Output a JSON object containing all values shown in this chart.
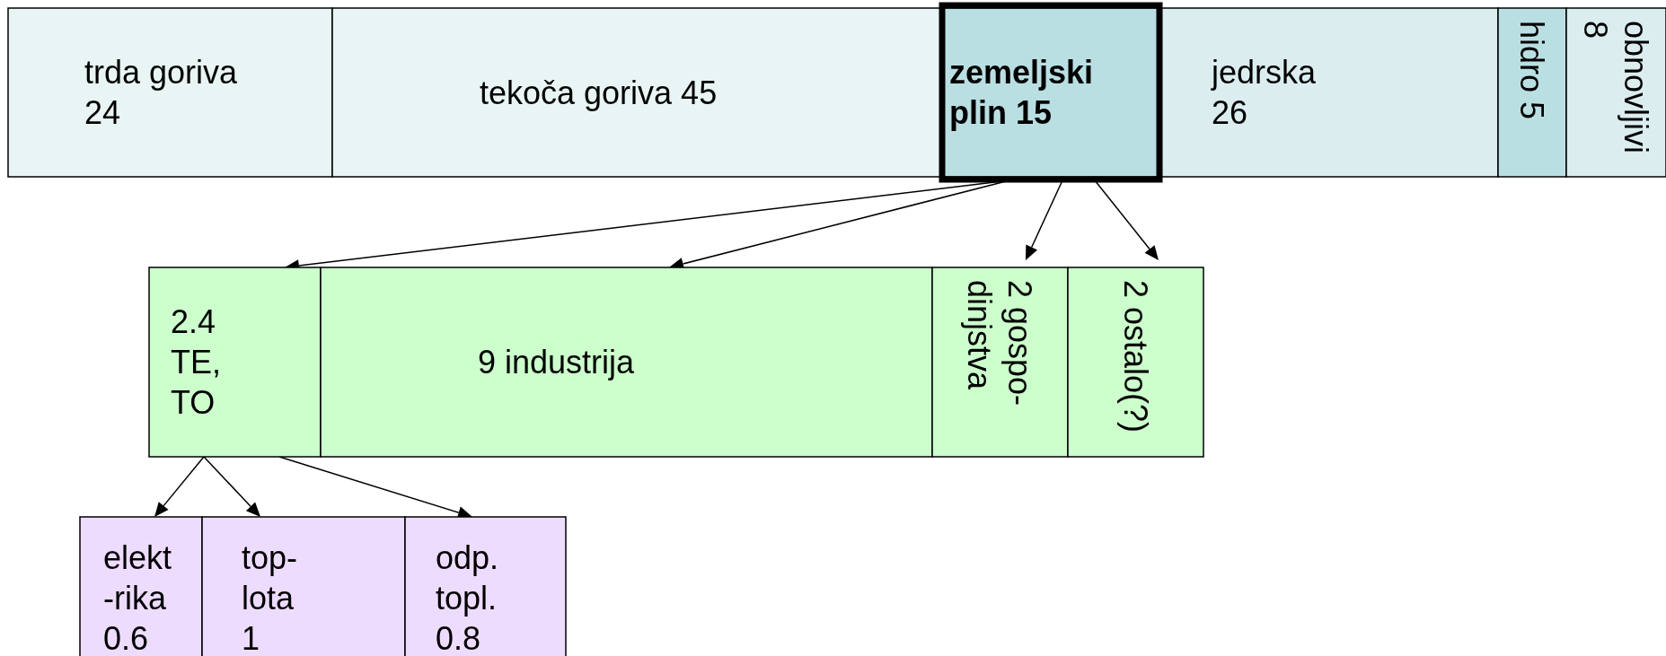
{
  "chart_data": [
    {
      "type": "other",
      "categories": [
        "trda goriva",
        "tekoča goriva",
        "zemeljski\nplin",
        "jedrska",
        "hidro",
        "obnovljivi"
      ],
      "values": [
        24,
        45,
        15,
        26,
        5,
        8
      ],
      "data_labels": true,
      "colors": [
        "#e9f5f5",
        "#e9f5f5",
        "#badfe3",
        "#dcedf0",
        "#badfe3",
        "#dcedf0"
      ]
    },
    {
      "type": "other",
      "categories": [
        "TE,\nTO",
        "industrija",
        "gospo-\ndinjstva",
        "ostalo(?)"
      ],
      "values": [
        2.4,
        9,
        2,
        2
      ],
      "data_labels": true,
      "colors": [
        "#ccffcc",
        "#ccffcc",
        "#ccffcc",
        "#ccffcc"
      ]
    },
    {
      "type": "other",
      "categories": [
        "elekt\n-rika",
        "top-\nlota",
        "odp.\ntopl."
      ],
      "values": [
        0.6,
        1,
        0.8
      ],
      "data_labels": true,
      "colors": [
        "#eedcff",
        "#eedcff",
        "#eedcff"
      ]
    }
  ]
}
